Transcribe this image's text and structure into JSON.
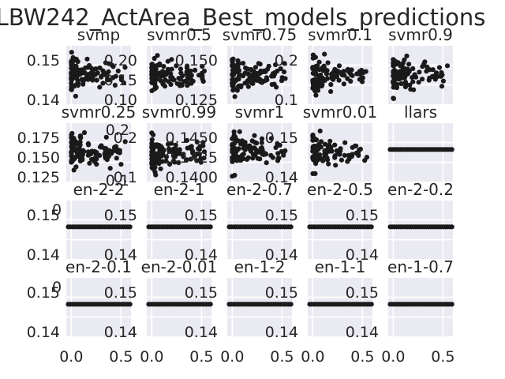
{
  "chart_data": {
    "title": "LBW242_ActArea_Best_models_predictions",
    "type": "scatter",
    "grid": true,
    "panels": [
      {
        "name": "svmp",
        "style": "scatter",
        "ylim": [
          0.132,
          0.16
        ],
        "y_ticks": [
          "0.15",
          "0.14"
        ],
        "overlay_ticks": [],
        "n": 110,
        "seed": 11
      },
      {
        "name": "svmr0.5",
        "style": "scatter",
        "ylim": [
          0.09,
          0.21
        ],
        "y_ticks": [
          "0.20",
          "0.15",
          "0.10"
        ],
        "overlay_ticks": [],
        "n": 110,
        "seed": 12
      },
      {
        "name": "svmr0.75",
        "style": "scatter",
        "ylim": [
          0.11,
          0.17
        ],
        "y_ticks": [
          "0.150",
          "0.125"
        ],
        "overlay_ticks": [],
        "n": 110,
        "seed": 13
      },
      {
        "name": "svmr0.1",
        "style": "scatter",
        "ylim": [
          0.06,
          0.23
        ],
        "y_ticks": [
          "0.2",
          "0.1"
        ],
        "overlay_ticks": [],
        "n": 100,
        "seed": 14
      },
      {
        "name": "svmr0.9",
        "style": "scatter",
        "ylim": [
          0.1,
          0.2
        ],
        "y_ticks": [],
        "overlay_ticks": [],
        "n": 110,
        "seed": 15
      },
      {
        "name": "svmr0.25",
        "style": "scatter",
        "ylim": [
          0.115,
          0.182
        ],
        "y_ticks": [
          "0.175",
          "0.150",
          "0.125"
        ],
        "overlay_ticks": [
          "0.2",
          "0.1"
        ],
        "n": 110,
        "seed": 16
      },
      {
        "name": "svmr0.99",
        "style": "scatter",
        "ylim": [
          0.07,
          0.23
        ],
        "y_ticks": [
          "0.2",
          "0.1"
        ],
        "overlay_ticks": [],
        "n": 110,
        "seed": 17
      },
      {
        "name": "svmr1",
        "style": "scatter",
        "ylim": [
          0.139,
          0.146
        ],
        "y_ticks": [
          "0.1450",
          "0.1425",
          "0.1400"
        ],
        "overlay_ticks": [],
        "n": 100,
        "seed": 18
      },
      {
        "name": "svmr0.01",
        "style": "scatter",
        "ylim": [
          0.135,
          0.158
        ],
        "y_ticks": [
          "0.15",
          "0.14"
        ],
        "overlay_ticks": [],
        "n": 90,
        "seed": 19
      },
      {
        "name": "llars",
        "style": "line",
        "ylim": [
          0.13,
          0.16
        ],
        "y_ticks": [],
        "overlay_ticks": [],
        "n": 30,
        "seed": 20
      },
      {
        "name": "en-2-2",
        "style": "line",
        "ylim": [
          0.13,
          0.16
        ],
        "y_ticks": [
          "0.15",
          "0.14"
        ],
        "overlay_ticks": [],
        "n": 30,
        "seed": 21
      },
      {
        "name": "en-2-1",
        "style": "line",
        "ylim": [
          0.13,
          0.16
        ],
        "y_ticks": [
          "0.15",
          "0.14"
        ],
        "overlay_ticks": [],
        "n": 30,
        "seed": 22
      },
      {
        "name": "en-2-0.7",
        "style": "line",
        "ylim": [
          0.13,
          0.16
        ],
        "y_ticks": [
          "0.15",
          "0.14"
        ],
        "overlay_ticks": [],
        "n": 30,
        "seed": 23
      },
      {
        "name": "en-2-0.5",
        "style": "line",
        "ylim": [
          0.13,
          0.16
        ],
        "y_ticks": [
          "0.15",
          "0.14"
        ],
        "overlay_ticks": [],
        "n": 30,
        "seed": 24
      },
      {
        "name": "en-2-0.2",
        "style": "line",
        "ylim": [
          0.13,
          0.16
        ],
        "y_ticks": [
          "0.15",
          "0.14"
        ],
        "overlay_ticks": [],
        "n": 30,
        "seed": 25
      },
      {
        "name": "en-2-0.1",
        "style": "line",
        "ylim": [
          0.13,
          0.16
        ],
        "y_ticks": [
          "0.15",
          "0.14"
        ],
        "overlay_ticks": [],
        "n": 30,
        "seed": 26
      },
      {
        "name": "en-2-0.01",
        "style": "line",
        "ylim": [
          0.13,
          0.16
        ],
        "y_ticks": [
          "0.15",
          "0.14"
        ],
        "overlay_ticks": [],
        "n": 30,
        "seed": 27
      },
      {
        "name": "en-1-2",
        "style": "line",
        "ylim": [
          0.13,
          0.16
        ],
        "y_ticks": [
          "0.15",
          "0.14"
        ],
        "overlay_ticks": [],
        "n": 30,
        "seed": 28
      },
      {
        "name": "en-1-1",
        "style": "line",
        "ylim": [
          0.13,
          0.16
        ],
        "y_ticks": [
          "0.15",
          "0.14"
        ],
        "overlay_ticks": [],
        "n": 30,
        "seed": 29
      },
      {
        "name": "en-1-0.7",
        "style": "line",
        "ylim": [
          0.13,
          0.16
        ],
        "y_ticks": [
          "0.15",
          "0.14"
        ],
        "overlay_ticks": [],
        "n": 30,
        "seed": 30
      }
    ],
    "row_labels_left": [
      {
        "row": 2,
        "text": "0"
      },
      {
        "row": 3,
        "text": "0"
      }
    ],
    "left_column_ticks": [
      {
        "row": 2,
        "labels": [
          "0.15",
          "0.14"
        ]
      },
      {
        "row": 3,
        "labels": [
          "0.15",
          "0.14"
        ]
      }
    ],
    "x_ticks": [
      "0.0",
      "0.5"
    ],
    "xlim": [
      -0.05,
      0.6
    ]
  }
}
